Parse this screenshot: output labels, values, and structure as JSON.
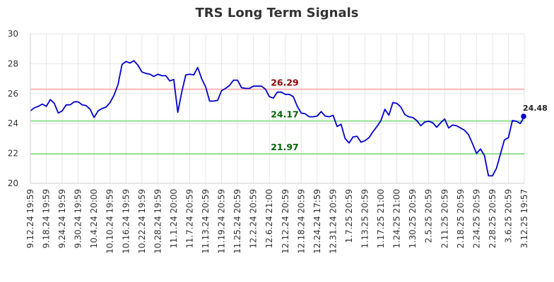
{
  "title": "TRS Long Term Signals",
  "chart_data": {
    "type": "line",
    "title": "TRS Long Term Signals",
    "xlabel": "",
    "ylabel": "",
    "ylim": [
      20,
      30
    ],
    "y_ticks": [
      20,
      22,
      24,
      26,
      28,
      30
    ],
    "grid": true,
    "x_tick_labels": [
      "9.12.24 19:59",
      "9.18.24 19:59",
      "9.24.24 19:59",
      "9.30.24 19:59",
      "10.4.24 20:00",
      "10.10.24 19:59",
      "10.16.24 19:59",
      "10.22.24 19:59",
      "10.28.24 19:59",
      "11.1.24 20:00",
      "11.7.24 20:59",
      "11.13.24 20:59",
      "11.19.24 20:59",
      "11.25.24 20:59",
      "12.2.24 20:59",
      "12.6.24 21:00",
      "12.12.24 20:59",
      "12.18.24 20:59",
      "12.24.24 17:59",
      "12.31.24 20:59",
      "1.7.25 20:59",
      "1.13.25 20:59",
      "1.17.25 21:00",
      "1.24.25 21:00",
      "1.30.25 20:59",
      "2.5.25 20:59",
      "2.11.25 20:59",
      "2.18.25 20:59",
      "2.24.25 20:59",
      "2.28.25 20:59",
      "3.6.25 20:59",
      "3.12.25 19:57"
    ],
    "reference_lines": [
      {
        "value": 26.29,
        "label": "26.29",
        "line_color": "#ffb3b3",
        "label_color": "#8b0000"
      },
      {
        "value": 24.17,
        "label": "24.17",
        "line_color": "#90e090",
        "label_color": "#006400"
      },
      {
        "value": 21.97,
        "label": "21.97",
        "line_color": "#90e090",
        "label_color": "#006400"
      }
    ],
    "series": [
      {
        "color": "#0000cc",
        "values": [
          24.85,
          25.05,
          25.15,
          25.3,
          25.15,
          25.6,
          25.35,
          24.7,
          24.85,
          25.25,
          25.25,
          25.45,
          25.45,
          25.25,
          25.2,
          24.95,
          24.4,
          24.85,
          25.0,
          25.1,
          25.4,
          25.9,
          26.6,
          27.95,
          28.15,
          28.05,
          28.2,
          27.9,
          27.45,
          27.35,
          27.3,
          27.15,
          27.3,
          27.2,
          27.2,
          26.85,
          26.95,
          24.75,
          26.1,
          27.25,
          27.3,
          27.25,
          27.75,
          27.0,
          26.45,
          25.5,
          25.5,
          25.55,
          26.2,
          26.35,
          26.55,
          26.9,
          26.9,
          26.4,
          26.35,
          26.35,
          26.5,
          26.5,
          26.5,
          26.3,
          25.8,
          25.7,
          26.1,
          26.1,
          25.95,
          25.95,
          25.8,
          25.15,
          24.7,
          24.65,
          24.45,
          24.45,
          24.5,
          24.8,
          24.5,
          24.45,
          24.55,
          23.8,
          23.95,
          23.0,
          22.7,
          23.1,
          23.15,
          22.75,
          22.85,
          23.05,
          23.45,
          23.8,
          24.2,
          24.95,
          24.55,
          25.4,
          25.35,
          25.1,
          24.6,
          24.45,
          24.4,
          24.2,
          23.85,
          24.1,
          24.15,
          24.05,
          23.75,
          24.05,
          24.3,
          23.7,
          23.9,
          23.85,
          23.7,
          23.55,
          23.25,
          22.65,
          22.0,
          22.3,
          21.85,
          20.5,
          20.5,
          21.0,
          21.95,
          22.9,
          23.05,
          24.2,
          24.15,
          24.0,
          24.48
        ]
      }
    ],
    "last_value_label": "24.48"
  }
}
